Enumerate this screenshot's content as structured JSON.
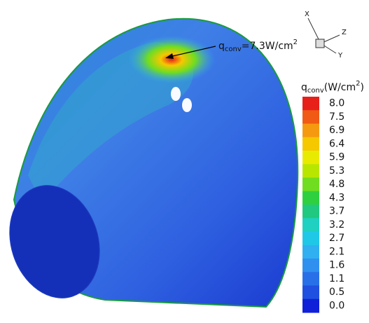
{
  "annotation": {
    "symbol": "q",
    "subscript": "conv",
    "text": "=7.3W/cm",
    "superscript": "2"
  },
  "legend": {
    "symbol": "q",
    "subscript": "conv",
    "unit": "(W/cm",
    "superscript": "2",
    "close": ")",
    "levels": [
      "8.0",
      "7.5",
      "6.9",
      "6.4",
      "5.9",
      "5.3",
      "4.8",
      "4.3",
      "3.7",
      "3.2",
      "2.7",
      "2.1",
      "1.6",
      "1.1",
      "0.5",
      "0.0"
    ],
    "colors": [
      "#e8201a",
      "#f05a14",
      "#f59a10",
      "#f5c800",
      "#e8ea00",
      "#b8e600",
      "#70dd20",
      "#2ed040",
      "#20c880",
      "#20d0c0",
      "#20c8e8",
      "#30b0f0",
      "#3090f0",
      "#2870e8",
      "#2050e0",
      "#1020d8"
    ]
  },
  "axes": {
    "x": "X",
    "z": "Z",
    "y": "Y"
  }
}
